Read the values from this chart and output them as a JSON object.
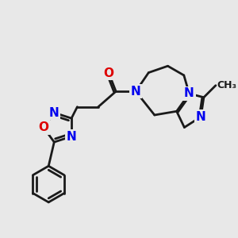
{
  "bg_color": "#e8e8e8",
  "bond_color": "#1a1a1a",
  "N_color": "#0000ee",
  "O_color": "#dd0000",
  "bond_width": 2.0,
  "font_size_atom": 11,
  "fig_size": [
    3.0,
    3.0
  ],
  "dpi": 100,
  "xlim": [
    0,
    10
  ],
  "ylim": [
    0,
    10
  ]
}
